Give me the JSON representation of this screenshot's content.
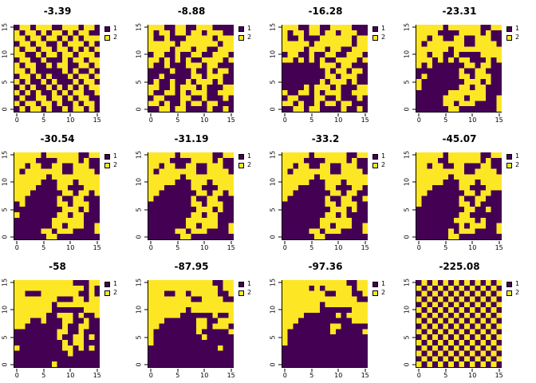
{
  "figure": {
    "background": "#ffffff",
    "layout": "3x4 grid of heatmap subplots"
  },
  "chart_data": {
    "type": "heatmap",
    "grid": {
      "rows": 3,
      "cols": 4
    },
    "n_cells": 16,
    "xlim": [
      0,
      16
    ],
    "ylim": [
      0,
      16
    ],
    "x_ticks": [
      0,
      5,
      10,
      15
    ],
    "y_ticks": [
      0,
      5,
      10,
      15
    ],
    "value_colors": {
      "1": "#440154",
      "2": "#FDE725"
    },
    "legend": [
      {
        "label": "1",
        "color": "#440154"
      },
      {
        "label": "2",
        "color": "#FDE725"
      }
    ],
    "plots": [
      {
        "title": "-3.39",
        "rows": [
          "1221222112221221",
          "2122121221212211",
          "2212212212121222",
          "1221221121222121",
          "2122122122121212",
          "2211212212212221",
          "1221121112122122",
          "2122112122112212",
          "2212111112121121",
          "1221212111212212",
          "2121121211121221",
          "1212112121212122",
          "2121211212122112",
          "1211221221212211",
          "2122122121121221",
          "1212212112122121"
        ]
      },
      {
        "title": "-8.88",
        "rows": [
          "2221122112221111",
          "2122122122122211",
          "2112111222221222",
          "2222212222222122",
          "2222122212211222",
          "1221121122112221",
          "2212121211222212",
          "2112111222122111",
          "1111211121121221",
          "1121111122122211",
          "1211211212221211",
          "2211212221211122",
          "2112212122211222",
          "1221112211211121",
          "2212112122122111",
          "1122122111121121"
        ]
      },
      {
        "title": "-16.28",
        "rows": [
          "2221122112222111",
          "2122122122122211",
          "2112111222222122",
          "2222212222222122",
          "2222122212211222",
          "1221121122112221",
          "2212121211222212",
          "1111111222122111",
          "1111111121221221",
          "1111111122122211",
          "1111111212221211",
          "1111212221211122",
          "2112212122211222",
          "1221112211211121",
          "2212112122122111",
          "1122122111121121"
        ]
      },
      {
        "title": "-23.31",
        "rows": [
          "2222212222221122",
          "2222111122221211",
          "2212211221122211",
          "2122222221122221",
          "2222221222222222",
          "2212211211112222",
          "2221212122111212",
          "2121111112212211",
          "1111111121122111",
          "1211111122122211",
          "2111111112221211",
          "2111111122122111",
          "1111112222222111",
          "1111122221222112",
          "1111122122211112",
          "1111112211111112"
        ]
      },
      {
        "title": "-30.54",
        "rows": [
          "2222212222221122",
          "2222111122221211",
          "2212211221122211",
          "2122222221122221",
          "2222221222222222",
          "2222211122212222",
          "2222111122111222",
          "2221111112212212",
          "2211111121122111",
          "1211111122122211",
          "1111111112221211",
          "2111111122122111",
          "1111111222222111",
          "1111111221222112",
          "1111122122211112",
          "1111112211111111"
        ]
      },
      {
        "title": "-31.19",
        "rows": [
          "2222212222221122",
          "2222111122221211",
          "2212211221122211",
          "2122222221122221",
          "2222221222222222",
          "2222211122212222",
          "2221111122111222",
          "2211111112212212",
          "2111111121122111",
          "1111111122122211",
          "1111111112221211",
          "1111111122122111",
          "1111111222222111",
          "1111111221222112",
          "1111122122211112",
          "1111112211111111"
        ]
      },
      {
        "title": "-33.2",
        "rows": [
          "2222212222221122",
          "2222111122221211",
          "2212211221122211",
          "2122222221122221",
          "2222221222222222",
          "2222211122212222",
          "2221111122111221",
          "2211111112212211",
          "2111111121122112",
          "1111111122122211",
          "1111111112221211",
          "1111111122121111",
          "1111111222222111",
          "1111111221222112",
          "1111122122211112",
          "1111112211111111"
        ]
      },
      {
        "title": "-45.07",
        "rows": [
          "2222212222221122",
          "2222112222221211",
          "2212211221112211",
          "2222222221122221",
          "2222221222222222",
          "2222211122212222",
          "2221111122111222",
          "2211111112212211",
          "2111111121122111",
          "2111111122121111",
          "1111111112211211",
          "1111111122111111",
          "1111111222212111",
          "1111111121222112",
          "1111112122211112",
          "1111112211111111"
        ]
      },
      {
        "title": "-58",
        "rows": [
          "2222222222211122",
          "2222222222222121",
          "2211122222221121",
          "2222222211122122",
          "2222222122222222",
          "2222222111111222",
          "2222221122212112",
          "2221121112211211",
          "2211111112112211",
          "1111111122112111",
          "1111111121122121",
          "1111111112122111",
          "2111111112212121",
          "1111111111211111",
          "1111111111111111",
          "1111111211111111"
        ]
      },
      {
        "title": "-87.95",
        "rows": [
          "2222222222221122",
          "2222222222222122",
          "2221122122222112",
          "2222222211222211",
          "2222222222222222",
          "2222222122222222",
          "2222221111112112",
          "2221111112211222",
          "2211111112212221",
          "2111111112111112",
          "2111111111211111",
          "2111111111111111",
          "1111111111111211",
          "1111111111111111",
          "1111111111111111",
          "1111111111111111"
        ]
      },
      {
        "title": "-97.36",
        "rows": [
          "2222222222221122",
          "2222212122222122",
          "2222222211222112",
          "2222222222222211",
          "2222222122222222",
          "2222222111111222",
          "2222111111212222",
          "2221111111111222",
          "2211111112211111",
          "2111111112111112",
          "2111111111111111",
          "2111111111111111",
          "1111111111111111",
          "1111111111111111",
          "1111111111111111",
          "1111111111111111"
        ]
      },
      {
        "title": "-225.08",
        "rows": [
          "1212121212121212",
          "2121212121212121",
          "1212121212121212",
          "2121212121212121",
          "1212121212121212",
          "2121212121212121",
          "1212121212121212",
          "2121212121212121",
          "1212121212121212",
          "2121212121212121",
          "1212121212121212",
          "2121212121212121",
          "1212121212121212",
          "2121212121212121",
          "1212121212121212",
          "2121212121212121"
        ]
      }
    ]
  }
}
